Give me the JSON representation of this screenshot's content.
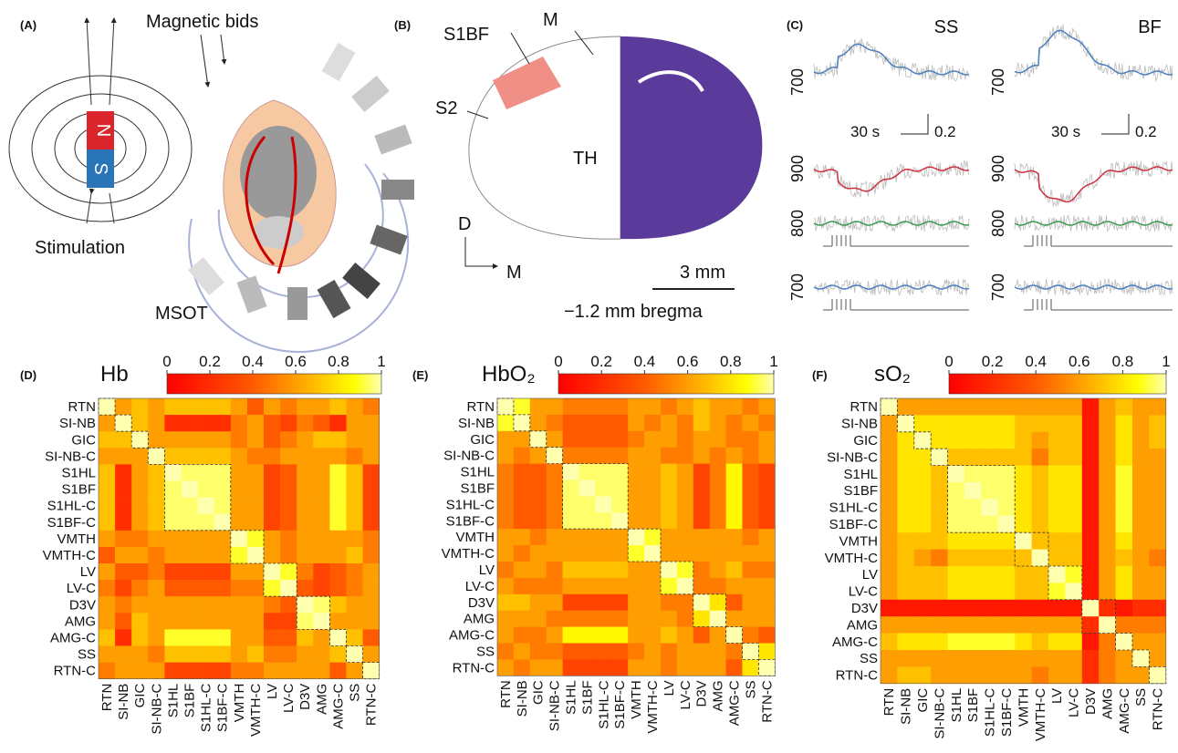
{
  "panels": {
    "a": {
      "label": "(A)",
      "beads": "Magnetic bids",
      "north": "N",
      "south": "S",
      "stimulation": "Stimulation",
      "msot": "MSOT"
    },
    "b": {
      "label": "(B)",
      "s1bf": "S1BF",
      "m_top": "M",
      "s2": "S2",
      "th": "TH",
      "dorsal": "D",
      "medial": "M",
      "scale": "3 mm",
      "bregma": "−1.2 mm bregma"
    },
    "c": {
      "label": "(C)",
      "columns": [
        {
          "title": "SS",
          "time_scale": "30 s",
          "value_scale": "0.2"
        },
        {
          "title": "BF",
          "time_scale": "30 s",
          "value_scale": "0.2"
        }
      ],
      "wavelengths": [
        "700",
        "900",
        "800",
        "700"
      ]
    }
  },
  "chart_data": [
    {
      "type": "heatmap",
      "panel": "(D)",
      "title": "Hb",
      "clim": [
        0,
        1
      ],
      "cticks": [
        0,
        0.2,
        0.4,
        0.6,
        0.8,
        1
      ],
      "categories": [
        "RTN",
        "SI-NB",
        "GIC",
        "SI-NB-C",
        "S1HL",
        "S1BF",
        "S1HL-C",
        "S1BF-C",
        "VMTH",
        "VMTH-C",
        "LV",
        "LV-C",
        "D3V",
        "AMG",
        "AMG-C",
        "SS",
        "RTN-C"
      ],
      "values": [
        [
          1,
          0.6,
          0.7,
          0.6,
          0.7,
          0.7,
          0.7,
          0.7,
          0.6,
          0.4,
          0.6,
          0.5,
          0.6,
          0.6,
          0.7,
          0.6,
          0.5
        ],
        [
          0.6,
          1,
          0.7,
          0.6,
          0.2,
          0.2,
          0.2,
          0.2,
          0.5,
          0.6,
          0.4,
          0.3,
          0.5,
          0.4,
          0.2,
          0.6,
          0.6
        ],
        [
          0.7,
          0.7,
          1,
          0.6,
          0.6,
          0.6,
          0.6,
          0.6,
          0.5,
          0.6,
          0.4,
          0.5,
          0.6,
          0.7,
          0.7,
          0.6,
          0.6
        ],
        [
          0.6,
          0.6,
          0.6,
          1,
          0.7,
          0.7,
          0.7,
          0.7,
          0.6,
          0.5,
          0.5,
          0.6,
          0.6,
          0.6,
          0.6,
          0.5,
          0.6
        ],
        [
          0.7,
          0.2,
          0.6,
          0.7,
          1,
          0.95,
          0.95,
          0.95,
          0.6,
          0.6,
          0.3,
          0.4,
          0.6,
          0.6,
          0.9,
          0.7,
          0.3
        ],
        [
          0.7,
          0.2,
          0.6,
          0.7,
          0.95,
          1,
          0.95,
          0.95,
          0.6,
          0.6,
          0.3,
          0.4,
          0.6,
          0.6,
          0.9,
          0.7,
          0.3
        ],
        [
          0.7,
          0.2,
          0.6,
          0.7,
          0.95,
          0.95,
          1,
          0.95,
          0.6,
          0.6,
          0.3,
          0.4,
          0.6,
          0.6,
          0.9,
          0.7,
          0.3
        ],
        [
          0.7,
          0.2,
          0.6,
          0.7,
          0.95,
          0.95,
          0.95,
          1,
          0.6,
          0.6,
          0.3,
          0.4,
          0.6,
          0.6,
          0.9,
          0.7,
          0.3
        ],
        [
          0.6,
          0.5,
          0.5,
          0.6,
          0.6,
          0.6,
          0.6,
          0.6,
          1,
          0.9,
          0.6,
          0.5,
          0.6,
          0.6,
          0.6,
          0.6,
          0.5
        ],
        [
          0.4,
          0.6,
          0.6,
          0.5,
          0.6,
          0.6,
          0.6,
          0.6,
          0.9,
          1,
          0.6,
          0.5,
          0.6,
          0.6,
          0.6,
          0.7,
          0.5
        ],
        [
          0.6,
          0.4,
          0.4,
          0.5,
          0.3,
          0.3,
          0.3,
          0.3,
          0.6,
          0.6,
          1,
          0.9,
          0.5,
          0.3,
          0.4,
          0.5,
          0.6
        ],
        [
          0.5,
          0.3,
          0.5,
          0.6,
          0.4,
          0.4,
          0.4,
          0.4,
          0.5,
          0.5,
          0.9,
          1,
          0.4,
          0.3,
          0.4,
          0.5,
          0.6
        ],
        [
          0.6,
          0.5,
          0.6,
          0.6,
          0.6,
          0.6,
          0.6,
          0.6,
          0.6,
          0.6,
          0.5,
          0.4,
          1,
          0.95,
          0.7,
          0.6,
          0.6
        ],
        [
          0.6,
          0.4,
          0.7,
          0.6,
          0.6,
          0.6,
          0.6,
          0.6,
          0.6,
          0.6,
          0.3,
          0.3,
          0.95,
          1,
          0.6,
          0.6,
          0.6
        ],
        [
          0.7,
          0.2,
          0.7,
          0.6,
          0.9,
          0.9,
          0.9,
          0.9,
          0.6,
          0.6,
          0.4,
          0.4,
          0.7,
          0.6,
          1,
          0.7,
          0.4
        ],
        [
          0.6,
          0.6,
          0.6,
          0.5,
          0.7,
          0.7,
          0.7,
          0.7,
          0.6,
          0.7,
          0.5,
          0.5,
          0.6,
          0.6,
          0.7,
          1,
          0.6
        ],
        [
          0.5,
          0.6,
          0.6,
          0.6,
          0.3,
          0.3,
          0.3,
          0.3,
          0.5,
          0.5,
          0.6,
          0.6,
          0.6,
          0.6,
          0.4,
          0.6,
          1
        ]
      ]
    },
    {
      "type": "heatmap",
      "panel": "(E)",
      "title": "HbO₂",
      "clim": [
        0,
        1
      ],
      "cticks": [
        0,
        0.2,
        0.4,
        0.6,
        0.8,
        1
      ],
      "categories": [
        "RTN",
        "SI-NB",
        "GIC",
        "SI-NB-C",
        "S1HL",
        "S1BF",
        "S1HL-C",
        "S1BF-C",
        "VMTH",
        "VMTH-C",
        "LV",
        "LV-C",
        "D3V",
        "AMG",
        "AMG-C",
        "SS",
        "RTN-C"
      ],
      "values": [
        [
          1,
          0.9,
          0.6,
          0.6,
          0.5,
          0.5,
          0.5,
          0.5,
          0.6,
          0.6,
          0.5,
          0.6,
          0.7,
          0.6,
          0.6,
          0.5,
          0.6
        ],
        [
          0.9,
          1,
          0.6,
          0.5,
          0.4,
          0.4,
          0.4,
          0.4,
          0.6,
          0.5,
          0.6,
          0.5,
          0.7,
          0.6,
          0.5,
          0.6,
          0.5
        ],
        [
          0.6,
          0.6,
          1,
          0.6,
          0.4,
          0.4,
          0.4,
          0.4,
          0.5,
          0.6,
          0.6,
          0.5,
          0.6,
          0.6,
          0.5,
          0.5,
          0.6
        ],
        [
          0.6,
          0.5,
          0.6,
          1,
          0.5,
          0.5,
          0.5,
          0.5,
          0.6,
          0.6,
          0.5,
          0.5,
          0.6,
          0.5,
          0.6,
          0.5,
          0.6
        ],
        [
          0.5,
          0.4,
          0.4,
          0.5,
          1,
          0.95,
          0.95,
          0.95,
          0.6,
          0.6,
          0.7,
          0.6,
          0.3,
          0.5,
          0.85,
          0.4,
          0.3
        ],
        [
          0.5,
          0.4,
          0.4,
          0.5,
          0.95,
          1,
          0.95,
          0.95,
          0.6,
          0.6,
          0.7,
          0.6,
          0.3,
          0.5,
          0.85,
          0.4,
          0.3
        ],
        [
          0.5,
          0.4,
          0.4,
          0.5,
          0.95,
          0.95,
          1,
          0.95,
          0.6,
          0.6,
          0.7,
          0.6,
          0.3,
          0.5,
          0.85,
          0.4,
          0.3
        ],
        [
          0.5,
          0.4,
          0.4,
          0.5,
          0.95,
          0.95,
          0.95,
          1,
          0.6,
          0.6,
          0.7,
          0.6,
          0.3,
          0.5,
          0.85,
          0.4,
          0.3
        ],
        [
          0.6,
          0.6,
          0.5,
          0.6,
          0.6,
          0.6,
          0.6,
          0.6,
          1,
          0.9,
          0.6,
          0.6,
          0.6,
          0.6,
          0.6,
          0.5,
          0.6
        ],
        [
          0.6,
          0.5,
          0.6,
          0.6,
          0.6,
          0.6,
          0.6,
          0.6,
          0.9,
          1,
          0.6,
          0.6,
          0.6,
          0.6,
          0.6,
          0.6,
          0.6
        ],
        [
          0.5,
          0.6,
          0.6,
          0.5,
          0.7,
          0.7,
          0.7,
          0.7,
          0.6,
          0.6,
          1,
          0.9,
          0.5,
          0.6,
          0.7,
          0.5,
          0.5
        ],
        [
          0.6,
          0.5,
          0.5,
          0.5,
          0.6,
          0.6,
          0.6,
          0.6,
          0.6,
          0.6,
          0.9,
          1,
          0.5,
          0.5,
          0.6,
          0.6,
          0.6
        ],
        [
          0.7,
          0.7,
          0.6,
          0.6,
          0.3,
          0.3,
          0.3,
          0.3,
          0.6,
          0.6,
          0.5,
          0.5,
          1,
          0.8,
          0.4,
          0.6,
          0.6
        ],
        [
          0.6,
          0.6,
          0.6,
          0.5,
          0.5,
          0.5,
          0.5,
          0.5,
          0.6,
          0.6,
          0.6,
          0.5,
          0.8,
          1,
          0.6,
          0.6,
          0.6
        ],
        [
          0.6,
          0.5,
          0.5,
          0.6,
          0.85,
          0.85,
          0.85,
          0.85,
          0.6,
          0.6,
          0.7,
          0.6,
          0.4,
          0.6,
          1,
          0.5,
          0.4
        ],
        [
          0.5,
          0.6,
          0.5,
          0.5,
          0.4,
          0.4,
          0.4,
          0.4,
          0.5,
          0.6,
          0.5,
          0.6,
          0.6,
          0.6,
          0.5,
          1,
          0.8
        ],
        [
          0.6,
          0.5,
          0.6,
          0.6,
          0.3,
          0.3,
          0.3,
          0.3,
          0.6,
          0.6,
          0.5,
          0.6,
          0.6,
          0.6,
          0.4,
          0.8,
          1
        ]
      ]
    },
    {
      "type": "heatmap",
      "panel": "(F)",
      "title": "sO₂",
      "clim": [
        0,
        1
      ],
      "cticks": [
        0,
        0.2,
        0.4,
        0.6,
        0.8,
        1
      ],
      "categories": [
        "RTN",
        "SI-NB",
        "GIC",
        "SI-NB-C",
        "S1HL",
        "S1BF",
        "S1HL-C",
        "S1BF-C",
        "VMTH",
        "VMTH-C",
        "LV",
        "LV-C",
        "D3V",
        "AMG",
        "AMG-C",
        "SS",
        "RTN-C"
      ],
      "values": [
        [
          1,
          0.6,
          0.6,
          0.6,
          0.6,
          0.6,
          0.6,
          0.6,
          0.6,
          0.6,
          0.6,
          0.6,
          0.1,
          0.6,
          0.7,
          0.6,
          0.6
        ],
        [
          0.6,
          1,
          0.8,
          0.8,
          0.8,
          0.8,
          0.8,
          0.8,
          0.7,
          0.7,
          0.7,
          0.7,
          0.1,
          0.6,
          0.8,
          0.6,
          0.7
        ],
        [
          0.6,
          0.8,
          1,
          0.8,
          0.8,
          0.8,
          0.8,
          0.8,
          0.7,
          0.6,
          0.7,
          0.7,
          0.1,
          0.6,
          0.8,
          0.6,
          0.7
        ],
        [
          0.6,
          0.8,
          0.8,
          1,
          0.7,
          0.7,
          0.7,
          0.7,
          0.7,
          0.5,
          0.7,
          0.7,
          0.1,
          0.6,
          0.8,
          0.6,
          0.6
        ],
        [
          0.6,
          0.8,
          0.8,
          0.7,
          1,
          0.95,
          0.95,
          0.95,
          0.8,
          0.7,
          0.8,
          0.8,
          0.1,
          0.6,
          0.9,
          0.6,
          0.6
        ],
        [
          0.6,
          0.8,
          0.8,
          0.7,
          0.95,
          1,
          0.95,
          0.95,
          0.8,
          0.7,
          0.8,
          0.8,
          0.1,
          0.6,
          0.9,
          0.6,
          0.6
        ],
        [
          0.6,
          0.8,
          0.8,
          0.7,
          0.95,
          0.95,
          1,
          0.95,
          0.8,
          0.7,
          0.8,
          0.8,
          0.1,
          0.6,
          0.9,
          0.6,
          0.6
        ],
        [
          0.6,
          0.8,
          0.8,
          0.7,
          0.95,
          0.95,
          0.95,
          1,
          0.8,
          0.7,
          0.8,
          0.8,
          0.1,
          0.6,
          0.9,
          0.6,
          0.6
        ],
        [
          0.6,
          0.7,
          0.7,
          0.7,
          0.8,
          0.8,
          0.8,
          0.8,
          1,
          0.7,
          0.7,
          0.7,
          0.1,
          0.6,
          0.8,
          0.6,
          0.6
        ],
        [
          0.6,
          0.7,
          0.6,
          0.5,
          0.7,
          0.7,
          0.7,
          0.7,
          0.7,
          1,
          0.7,
          0.7,
          0.1,
          0.6,
          0.7,
          0.6,
          0.5
        ],
        [
          0.6,
          0.7,
          0.7,
          0.7,
          0.8,
          0.8,
          0.8,
          0.8,
          0.7,
          0.7,
          1,
          0.9,
          0.1,
          0.6,
          0.8,
          0.6,
          0.6
        ],
        [
          0.6,
          0.7,
          0.7,
          0.7,
          0.8,
          0.8,
          0.8,
          0.8,
          0.7,
          0.7,
          0.9,
          1,
          0.1,
          0.6,
          0.8,
          0.6,
          0.6
        ],
        [
          0.1,
          0.1,
          0.1,
          0.1,
          0.1,
          0.1,
          0.1,
          0.1,
          0.1,
          0.1,
          0.1,
          0.1,
          1,
          0.2,
          0.1,
          0.2,
          0.2
        ],
        [
          0.6,
          0.6,
          0.6,
          0.6,
          0.6,
          0.6,
          0.6,
          0.6,
          0.6,
          0.6,
          0.6,
          0.6,
          0.2,
          1,
          0.5,
          0.5,
          0.5
        ],
        [
          0.7,
          0.8,
          0.8,
          0.8,
          0.9,
          0.9,
          0.9,
          0.9,
          0.8,
          0.7,
          0.8,
          0.8,
          0.1,
          0.5,
          1,
          0.6,
          0.6
        ],
        [
          0.6,
          0.6,
          0.6,
          0.6,
          0.6,
          0.6,
          0.6,
          0.6,
          0.6,
          0.6,
          0.6,
          0.6,
          0.2,
          0.5,
          0.6,
          1,
          0.6
        ],
        [
          0.6,
          0.7,
          0.7,
          0.6,
          0.6,
          0.6,
          0.6,
          0.6,
          0.6,
          0.5,
          0.6,
          0.6,
          0.2,
          0.5,
          0.6,
          0.6,
          1
        ]
      ]
    }
  ]
}
